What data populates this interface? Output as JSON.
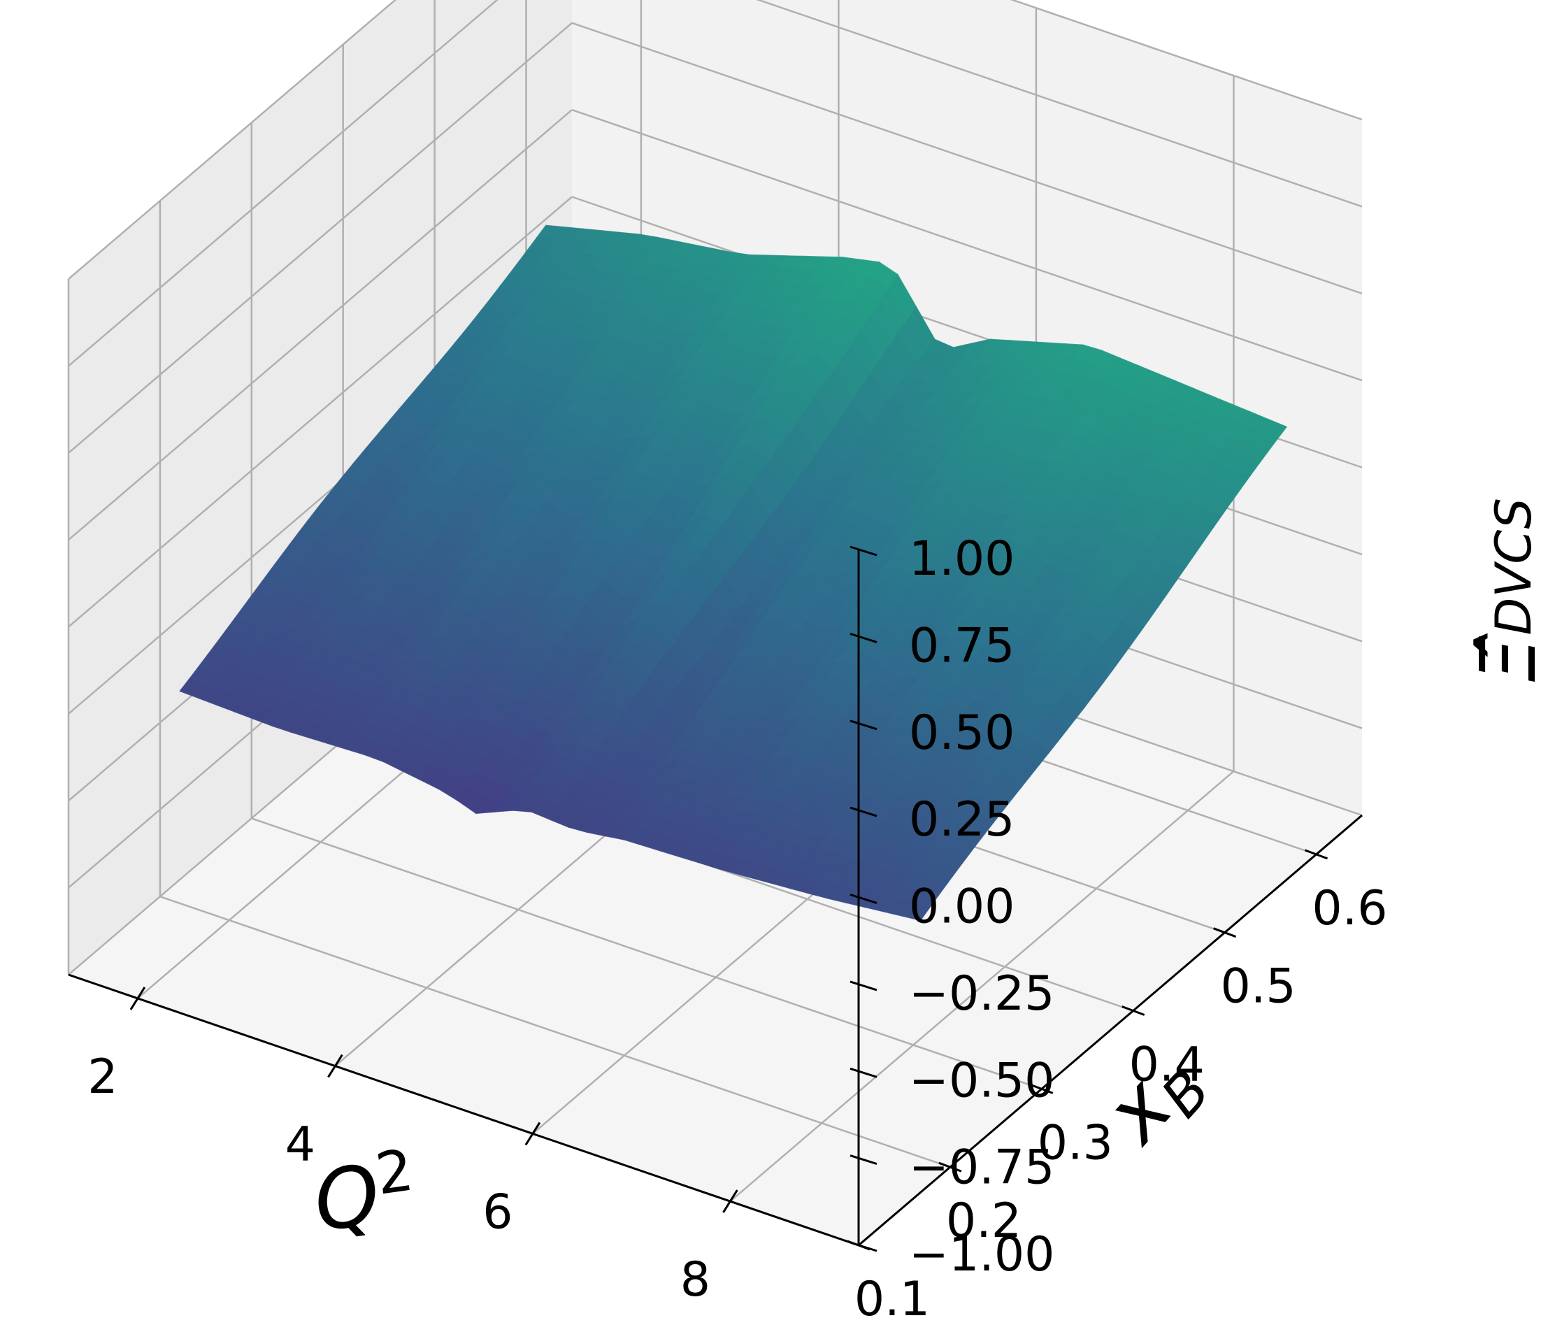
{
  "chart_data": {
    "type": "surface",
    "xlabel": "Q²",
    "ylabel": "x_B",
    "zlabel": "Ξ̂_DVCS",
    "x_label_main": "Q",
    "x_label_sup": "2",
    "y_label_main": "x",
    "y_label_sub": "B",
    "z_label_main": "Ξ̂",
    "z_label_sub": "DVCS",
    "xlim": [
      1.3,
      9.3
    ],
    "ylim": [
      0.1,
      0.65
    ],
    "zlim": [
      -1.0,
      1.0
    ],
    "x_ticks": [
      2,
      4,
      6,
      8
    ],
    "x_tick_labels": [
      "2",
      "4",
      "6",
      "8"
    ],
    "y_ticks": [
      0.1,
      0.2,
      0.3,
      0.4,
      0.5,
      0.6
    ],
    "y_tick_labels": [
      "0.1",
      "0.2",
      "0.3",
      "0.4",
      "0.5",
      "0.6"
    ],
    "z_ticks": [
      -1.0,
      -0.75,
      -0.5,
      -0.25,
      0.0,
      0.25,
      0.5,
      0.75,
      1.0
    ],
    "z_tick_labels": [
      "−1.00",
      "−0.75",
      "−0.50",
      "−0.25",
      "0.00",
      "0.25",
      "0.50",
      "0.75",
      "1.00"
    ],
    "surface_x": [
      1.5,
      9.0
    ],
    "surface_y": [
      0.2,
      0.6
    ],
    "front_edge_z": [
      {
        "x": 1.5,
        "z": -0.39
      },
      {
        "x": 2.5,
        "z": -0.4
      },
      {
        "x": 3.5,
        "z": -0.39
      },
      {
        "x": 4.2,
        "z": -0.42
      },
      {
        "x": 4.5,
        "z": -0.45
      },
      {
        "x": 5.0,
        "z": -0.39
      },
      {
        "x": 5.5,
        "z": -0.4
      },
      {
        "x": 6.0,
        "z": -0.38
      },
      {
        "x": 7.0,
        "z": -0.37
      },
      {
        "x": 8.0,
        "z": -0.35
      },
      {
        "x": 9.0,
        "z": -0.32
      }
    ],
    "back_edge_z": [
      {
        "x": 1.5,
        "z": 0.05
      },
      {
        "x": 2.5,
        "z": 0.12
      },
      {
        "x": 3.5,
        "z": 0.16
      },
      {
        "x": 4.5,
        "z": 0.25
      },
      {
        "x": 5.0,
        "z": 0.28
      },
      {
        "x": 5.5,
        "z": 0.08
      },
      {
        "x": 6.0,
        "z": 0.16
      },
      {
        "x": 7.0,
        "z": 0.24
      },
      {
        "x": 8.0,
        "z": 0.22
      },
      {
        "x": 9.0,
        "z": 0.2
      }
    ],
    "colormap": "viridis",
    "colormap_low": "#433e85",
    "colormap_mid": "#2c728e",
    "colormap_high": "#22a884",
    "grid": true,
    "pane_colors": [
      "#f2f2f2",
      "#ebebeb",
      "#f5f5f5"
    ],
    "grid_color": "#b0b0b0"
  }
}
